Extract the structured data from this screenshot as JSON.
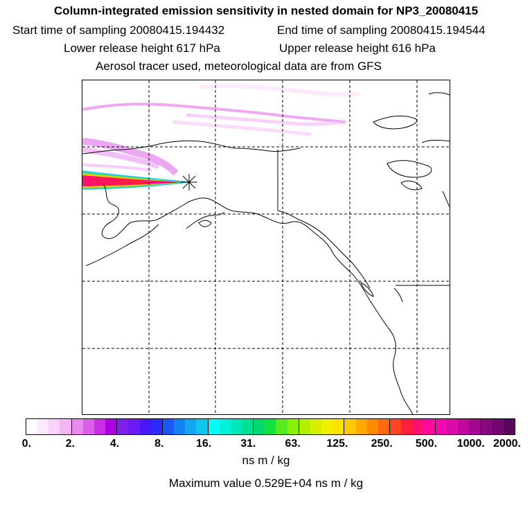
{
  "header": {
    "title": "Column-integrated emission sensitivity in nested domain for NP3_20080415",
    "start_time": "Start time of sampling 20080415.194432",
    "end_time": "End time of sampling 20080415.194544",
    "lower_height": "Lower release height  617 hPa",
    "upper_height": "Upper release height  616 hPa",
    "tracer_info": "Aerosol tracer used, meteorological data are from GFS"
  },
  "map": {
    "region": "Alaska / Western Canada / US Pacific Northwest",
    "release_marker": "release-point"
  },
  "colorbar": {
    "colors": [
      "#ffffff",
      "#fde8fd",
      "#f9d2f9",
      "#f3b6f5",
      "#e98af0",
      "#dc5fe9",
      "#c830e3",
      "#ac00e0",
      "#7f20ee",
      "#6a1bf6",
      "#4a18f8",
      "#2a2cf9",
      "#1a58f6",
      "#1582f2",
      "#12a6ee",
      "#10c6ec",
      "#00fff5",
      "#00f2d6",
      "#00e8b8",
      "#00e095",
      "#00d86c",
      "#10e040",
      "#58ea20",
      "#88f000",
      "#b2f000",
      "#d6f000",
      "#f0f000",
      "#ffe200",
      "#ffc800",
      "#ffa800",
      "#ff8a00",
      "#ff6a10",
      "#ff4420",
      "#ff2040",
      "#ff1070",
      "#ff0aa0",
      "#f00ab0",
      "#d80aa8",
      "#c0089c",
      "#a00890",
      "#880880",
      "#700870",
      "#580858"
    ],
    "tick_labels": [
      "0.",
      "2.",
      "4.",
      "8.",
      "16.",
      "31.",
      "63.",
      "125.",
      "250.",
      "500.",
      "1000.",
      "2000."
    ],
    "units": "ns m / kg"
  },
  "footer": {
    "max_value": "Maximum value  0.529E+04 ns m / kg"
  }
}
